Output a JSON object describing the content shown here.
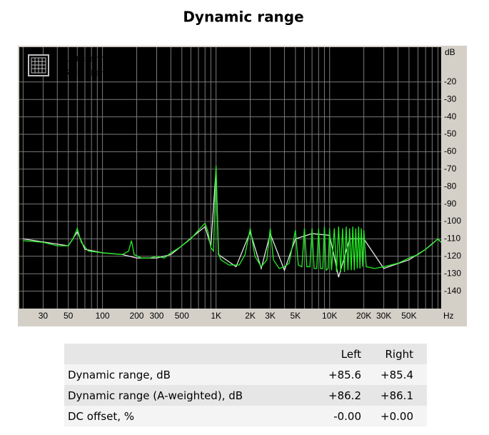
{
  "chart_data": {
    "type": "line",
    "title": "Dynamic range",
    "x_unit": "Hz",
    "y_unit": "dB",
    "xscale": "log",
    "grid": true,
    "xlim": [
      18.5,
      96000
    ],
    "ylim": [
      -150,
      0
    ],
    "xticks": [
      30,
      50,
      100,
      200,
      300,
      500,
      {
        "value": 1000,
        "label": "1K"
      },
      {
        "value": 2000,
        "label": "2K"
      },
      {
        "value": 3000,
        "label": "3K"
      },
      {
        "value": 5000,
        "label": "5K"
      },
      {
        "value": 10000,
        "label": "10K"
      },
      {
        "value": 20000,
        "label": "20K"
      },
      {
        "value": 30000,
        "label": "30K"
      },
      {
        "value": 50000,
        "label": "50K"
      }
    ],
    "xgrid": [
      20,
      30,
      40,
      50,
      60,
      70,
      80,
      90,
      100,
      200,
      300,
      400,
      500,
      600,
      700,
      800,
      900,
      1000,
      2000,
      3000,
      4000,
      5000,
      6000,
      7000,
      8000,
      9000,
      10000,
      20000,
      30000,
      40000,
      50000,
      60000,
      70000,
      80000,
      90000
    ],
    "yticks": [
      -20,
      -30,
      -40,
      -50,
      -60,
      -70,
      -80,
      -90,
      -100,
      -110,
      -120,
      -130,
      -140
    ],
    "legend": "top-left",
    "series": [
      {
        "name": "Left channel",
        "color": "#e8e8e8",
        "x": [
          20,
          40,
          50,
          60,
          70,
          100,
          150,
          200,
          300,
          400,
          500,
          700,
          800,
          900,
          1000,
          1050,
          1500,
          2000,
          2500,
          3000,
          4000,
          5000,
          7000,
          10000,
          12000,
          15000,
          20000,
          30000,
          50000,
          70000,
          90000,
          96000
        ],
        "values": [
          -110,
          -113,
          -114,
          -106,
          -116,
          -118,
          -119,
          -121,
          -121,
          -119,
          -114,
          -106,
          -103,
          -114,
          -70,
          -119,
          -126,
          -106,
          -127,
          -107,
          -128,
          -110,
          -107,
          -108,
          -132,
          -110,
          -110,
          -127,
          -122,
          -116,
          -110,
          -112
        ]
      },
      {
        "name": "Right channel",
        "color": "#22ee22",
        "x": [
          20,
          30,
          40,
          50,
          55,
          60,
          65,
          75,
          100,
          150,
          170,
          180,
          190,
          220,
          260,
          300,
          350,
          400,
          450,
          500,
          600,
          700,
          800,
          850,
          900,
          950,
          1000,
          1050,
          1100,
          1300,
          1600,
          1800,
          2000,
          2200,
          2500,
          2800,
          3000,
          3200,
          3600,
          4000,
          4400,
          5000,
          5300,
          5700,
          6000,
          6300,
          6700,
          7000,
          7300,
          7700,
          8000,
          8300,
          8700,
          9000,
          9300,
          9700,
          10000,
          10400,
          11000,
          11500,
          12000,
          12500,
          13000,
          13500,
          14000,
          14500,
          15000,
          15500,
          16000,
          16500,
          17000,
          17500,
          18000,
          18500,
          19000,
          19500,
          20000,
          21000,
          25000,
          30000,
          40000,
          50000,
          60000,
          70000,
          80000,
          90000,
          96000
        ],
        "values": [
          -111,
          -112,
          -114,
          -114,
          -110,
          -104,
          -112,
          -117,
          -118,
          -119,
          -117,
          -111,
          -119,
          -121,
          -121,
          -120,
          -121,
          -118,
          -116,
          -114,
          -110,
          -105,
          -101,
          -106,
          -115,
          -117,
          -68,
          -118,
          -122,
          -125,
          -125,
          -119,
          -104,
          -120,
          -126,
          -122,
          -104,
          -122,
          -127,
          -126,
          -124,
          -105,
          -125,
          -126,
          -104,
          -126,
          -126,
          -104,
          -127,
          -127,
          -104,
          -127,
          -127,
          -103,
          -128,
          -127,
          -104,
          -128,
          -104,
          -129,
          -103,
          -129,
          -104,
          -129,
          -103,
          -128,
          -104,
          -128,
          -103,
          -128,
          -104,
          -127,
          -103,
          -127,
          -104,
          -126,
          -105,
          -126,
          -127,
          -126,
          -124,
          -121,
          -119,
          -116,
          -113,
          -110,
          -112
        ]
      }
    ]
  },
  "table": {
    "header": [
      "Left",
      "Right"
    ],
    "rows": [
      [
        "Dynamic range, dB",
        "+85.6",
        "+85.4"
      ],
      [
        "Dynamic range (A-weighted), dB",
        "+86.2",
        "+86.1"
      ],
      [
        "DC offset, %",
        "-0.00",
        "+0.00"
      ]
    ]
  }
}
